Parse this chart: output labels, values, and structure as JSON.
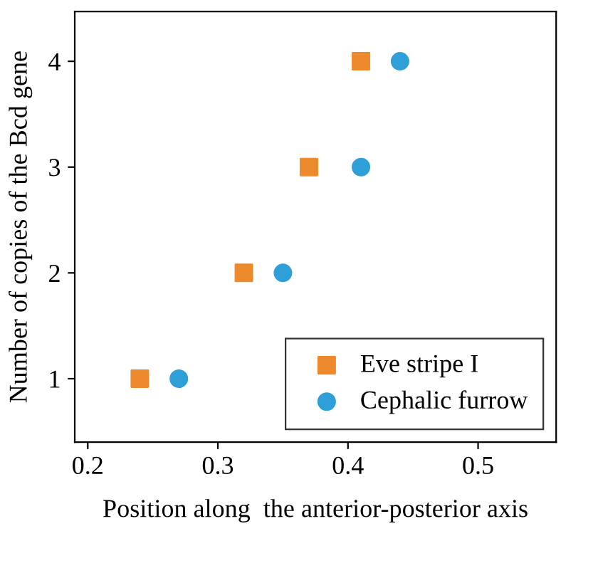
{
  "chart_data": {
    "type": "scatter",
    "xlabel": "Position along  the anterior-posterior axis",
    "ylabel": "Number of copies of the Bcd gene",
    "xlim": [
      0.19,
      0.56
    ],
    "ylim": [
      0.4,
      4.47
    ],
    "xticks": [
      0.2,
      0.3,
      0.4,
      0.5
    ],
    "yticks": [
      1,
      2,
      3,
      4
    ],
    "grid": false,
    "legend": "bottom right",
    "series": [
      {
        "name": "Eve stripe I",
        "color": "#ee8a2e",
        "marker": "square",
        "x": [
          0.24,
          0.32,
          0.37,
          0.41
        ],
        "values": [
          1,
          2,
          3,
          4
        ]
      },
      {
        "name": "Cephalic furrow",
        "color": "#2f9fd8",
        "marker": "circle",
        "x": [
          0.27,
          0.35,
          0.41,
          0.44
        ],
        "values": [
          1,
          2,
          3,
          4
        ]
      }
    ]
  }
}
